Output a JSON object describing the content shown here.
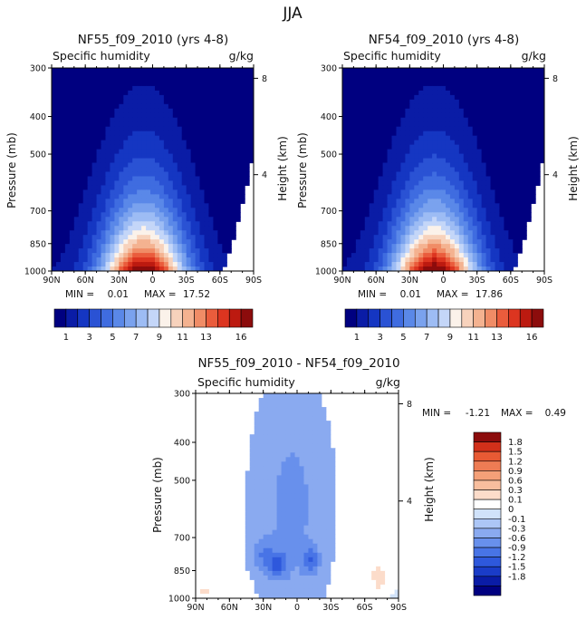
{
  "figure_title": "JJA",
  "palettes": {
    "full": [
      "#000080",
      "#0a1ca6",
      "#1536c2",
      "#2a52d4",
      "#3f6ce0",
      "#5a88e8",
      "#7aa2ee",
      "#9dbcf4",
      "#c4d6f8",
      "#fbf2ea",
      "#f7d2bc",
      "#f4b290",
      "#f08c66",
      "#ea5c3c",
      "#dc3520",
      "#bc1a10",
      "#8c0c0c"
    ],
    "diff": [
      "#000080",
      "#0a1ca6",
      "#1a3cc8",
      "#2e58dc",
      "#4874e6",
      "#6890ec",
      "#8aaaf0",
      "#acc6f6",
      "#d0e2fa",
      "#ffffff",
      "#fcdcca",
      "#f8be9e",
      "#f4a078",
      "#ee7c54",
      "#e85a34",
      "#d2301a",
      "#8c0c0c"
    ]
  },
  "chart_data": [
    {
      "type": "heatmap",
      "title": "NF55_f09_2010 (yrs 4-8)",
      "left_label": "Specific humidity",
      "right_label": "g/kg",
      "xlabel": "",
      "ylabel": "Pressure (mb)",
      "y2label": "Height (km)",
      "x_ticks": [
        "90N",
        "60N",
        "30N",
        "0",
        "30S",
        "60S",
        "90S"
      ],
      "x_values": [
        90,
        60,
        30,
        0,
        -30,
        -60,
        -90
      ],
      "y_ticks": [
        "300",
        "400",
        "500",
        "700",
        "850",
        "1000"
      ],
      "y_values": [
        300,
        400,
        500,
        700,
        850,
        1000
      ],
      "y_range": [
        300,
        1000
      ],
      "y2_ticks": [
        "8",
        "4"
      ],
      "y2_values": [
        8,
        4
      ],
      "stats": {
        "min_label": "MIN =",
        "min": "0.01",
        "max_label": "MAX =",
        "max": "17.52"
      },
      "peak_value": 17.52,
      "peak_lat": 8,
      "colorbar": {
        "orientation": "horizontal",
        "palette": "full",
        "tick_labels": [
          "1",
          "3",
          "5",
          "7",
          "9",
          "11",
          "13",
          "16"
        ]
      }
    },
    {
      "type": "heatmap",
      "title": "NF54_f09_2010 (yrs 4-8)",
      "left_label": "Specific humidity",
      "right_label": "g/kg",
      "xlabel": "",
      "ylabel": "Pressure (mb)",
      "y2label": "Height (km)",
      "x_ticks": [
        "90N",
        "60N",
        "30N",
        "0",
        "30S",
        "60S",
        "90S"
      ],
      "x_values": [
        90,
        60,
        30,
        0,
        -30,
        -60,
        -90
      ],
      "y_ticks": [
        "300",
        "400",
        "500",
        "700",
        "850",
        "1000"
      ],
      "y_values": [
        300,
        400,
        500,
        700,
        850,
        1000
      ],
      "y_range": [
        300,
        1000
      ],
      "y2_ticks": [
        "8",
        "4"
      ],
      "y2_values": [
        8,
        4
      ],
      "stats": {
        "min_label": "MIN =",
        "min": "0.01",
        "max_label": "MAX =",
        "max": "17.86"
      },
      "peak_value": 17.86,
      "peak_lat": 8,
      "colorbar": {
        "orientation": "horizontal",
        "palette": "full",
        "tick_labels": [
          "1",
          "3",
          "5",
          "7",
          "9",
          "11",
          "13",
          "16"
        ]
      }
    },
    {
      "type": "heatmap",
      "title": "NF55_f09_2010 - NF54_f09_2010",
      "left_label": "Specific humidity",
      "right_label": "g/kg",
      "xlabel": "",
      "ylabel": "Pressure (mb)",
      "y2label": "Height (km)",
      "x_ticks": [
        "90N",
        "60N",
        "30N",
        "0",
        "30S",
        "60S",
        "90S"
      ],
      "x_values": [
        90,
        60,
        30,
        0,
        -30,
        -60,
        -90
      ],
      "y_ticks": [
        "300",
        "400",
        "500",
        "700",
        "850",
        "1000"
      ],
      "y_values": [
        300,
        400,
        500,
        700,
        850,
        1000
      ],
      "y_range": [
        300,
        1000
      ],
      "y2_ticks": [
        "8",
        "4"
      ],
      "y2_values": [
        8,
        4
      ],
      "stats": {
        "min_label": "MIN =",
        "min": "-1.21",
        "max_label": "MAX =",
        "max": "0.49"
      },
      "min_value": -1.21,
      "max_value": 0.49,
      "colorbar": {
        "orientation": "vertical",
        "palette": "diff",
        "tick_labels": [
          "1.8",
          "1.5",
          "1.2",
          "0.9",
          "0.6",
          "0.3",
          "0.1",
          "0",
          "-0.1",
          "-0.3",
          "-0.6",
          "-0.9",
          "-1.2",
          "-1.5",
          "-1.8"
        ]
      }
    }
  ]
}
